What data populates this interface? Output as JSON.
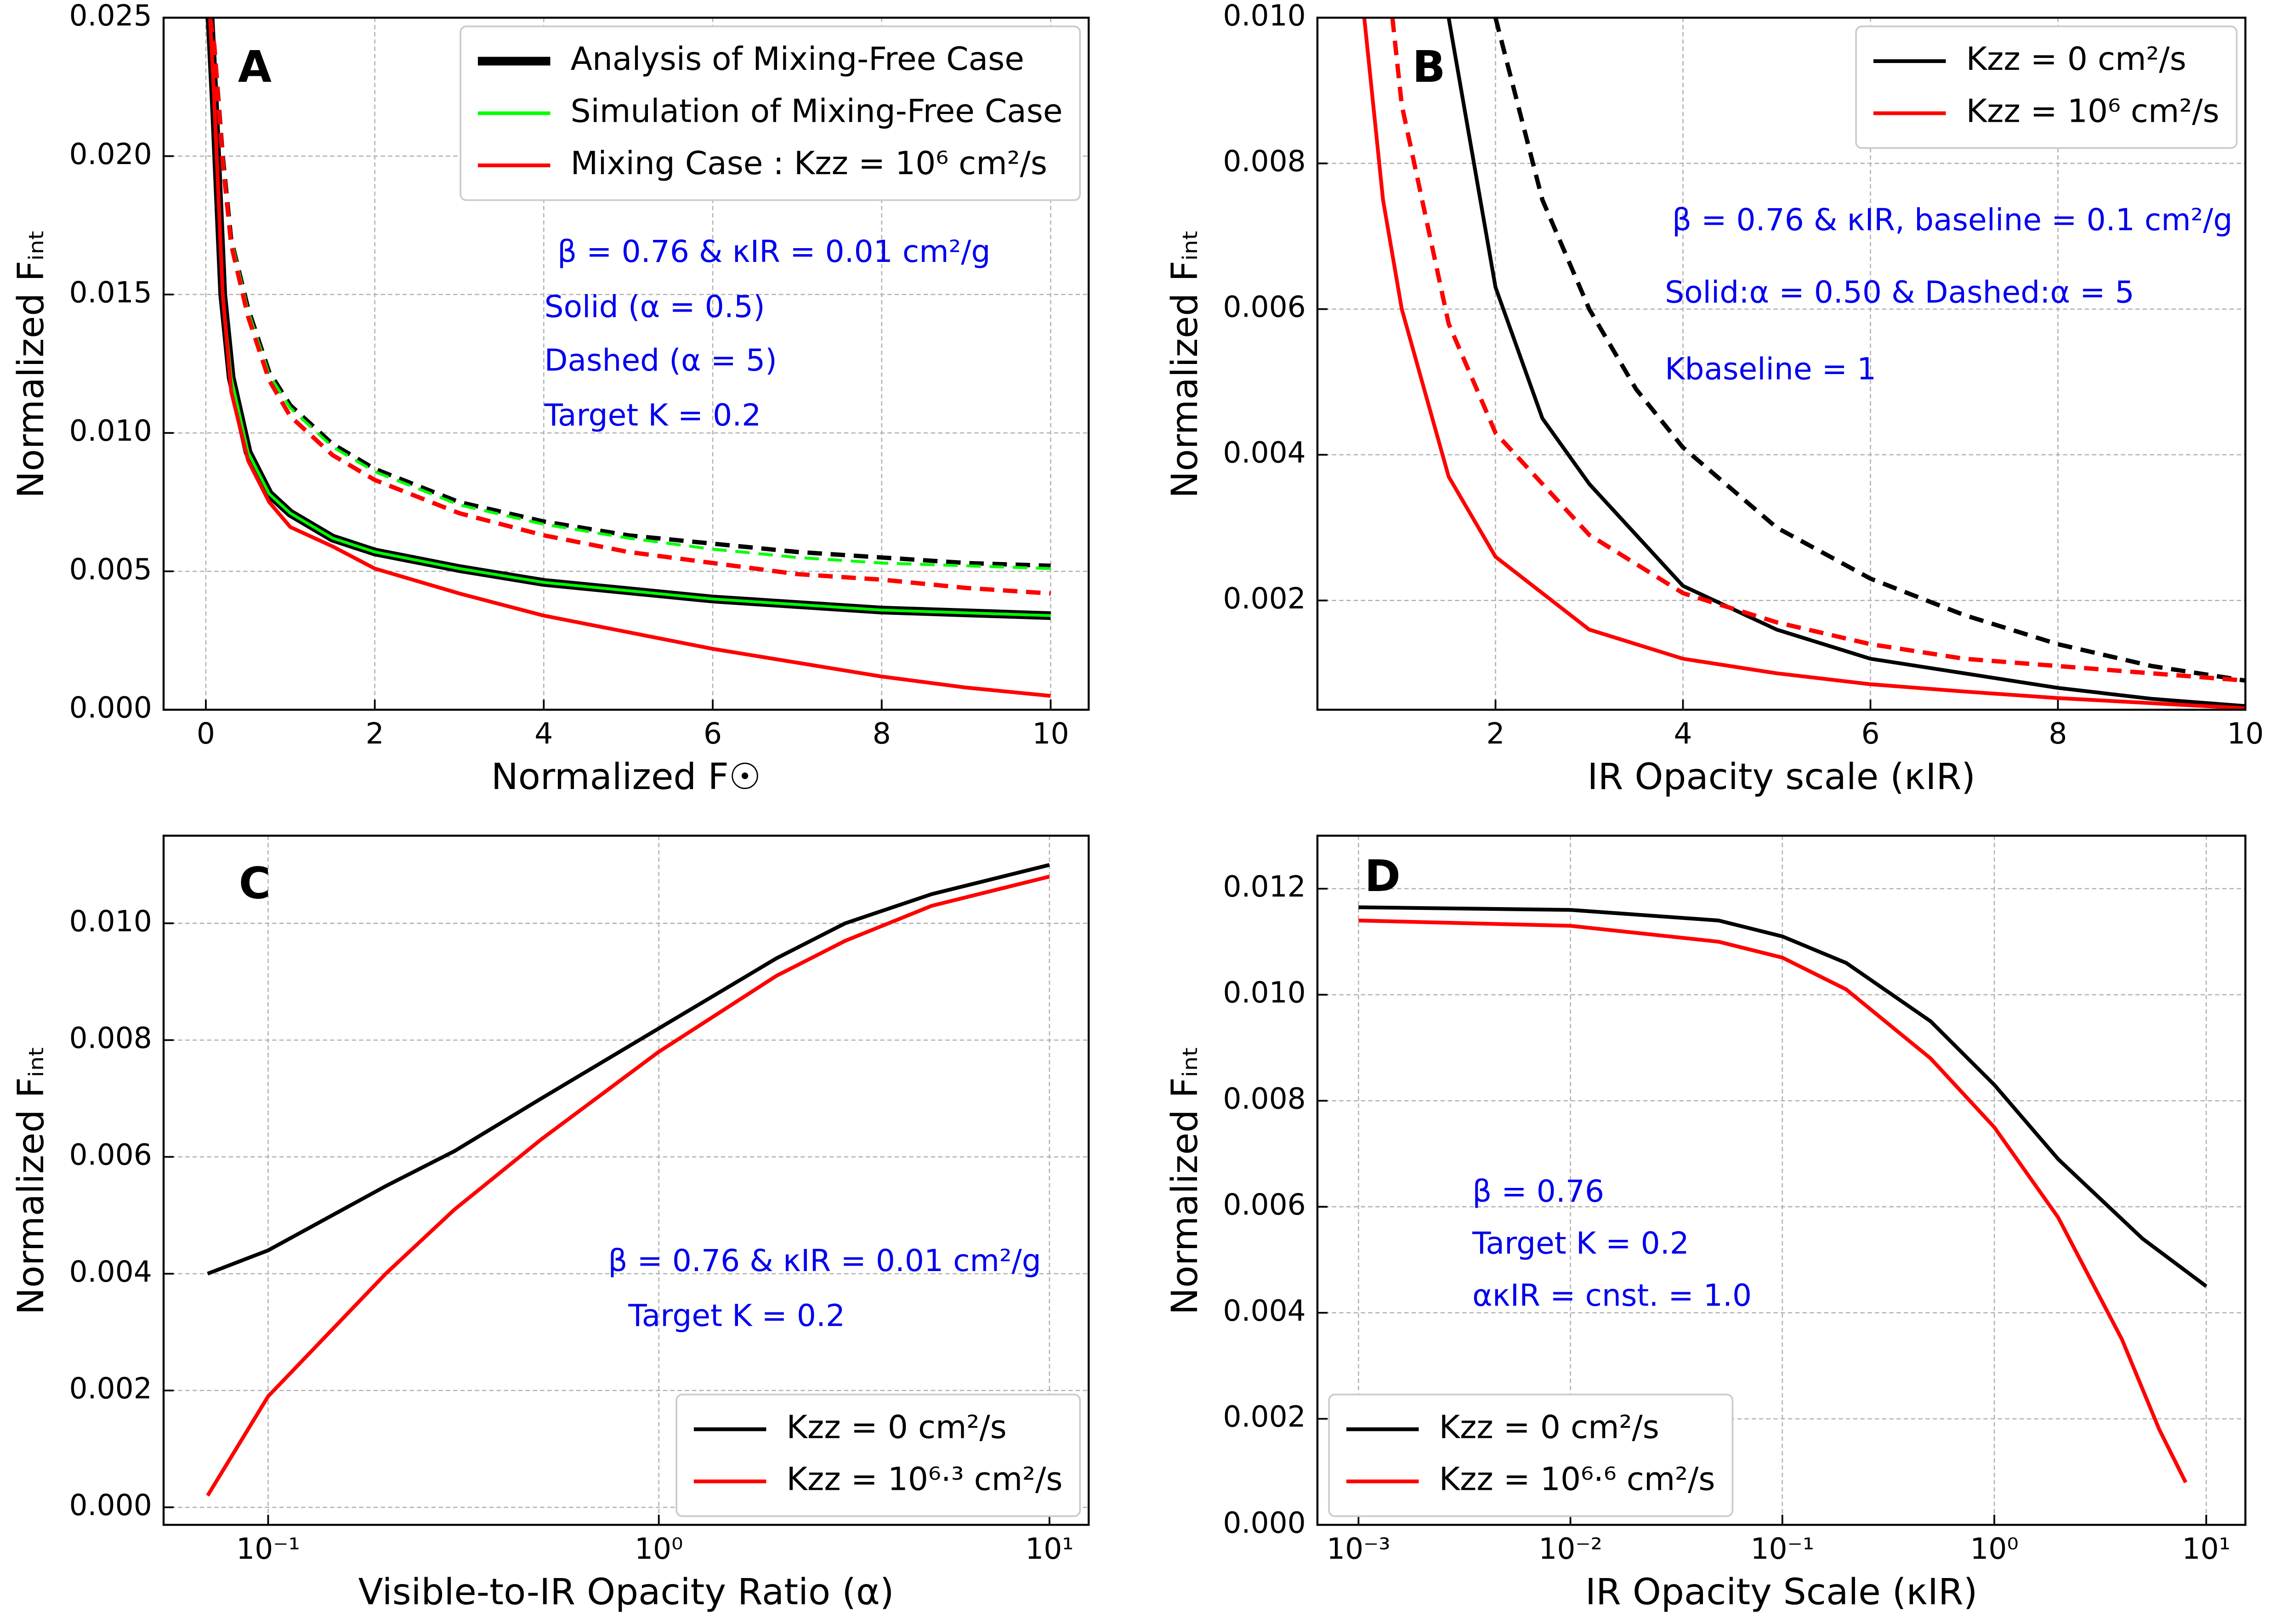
{
  "chart_data": [
    {
      "type": "line",
      "panel_label": "A",
      "xlabel": "Normalized F☉",
      "ylabel": "Normalized Fᵢₙₜ",
      "xscale": "linear",
      "xlim": [
        -0.5,
        10.45
      ],
      "ylim": [
        0,
        0.025
      ],
      "xticks": [
        0,
        2,
        4,
        6,
        8,
        10
      ],
      "yticks": [
        {
          "value": 0,
          "label": "0.000"
        },
        0.005,
        {
          "value": 0.01,
          "label": "0.010"
        },
        0.015,
        {
          "value": 0.02,
          "label": "0.020"
        },
        0.025
      ],
      "grid": true,
      "legend_loc": "upper right",
      "annotations": [
        "β = 0.76 & κIR = 0.01 cm²/g",
        "Solid (α = 0.5)",
        "Dashed (α = 5)",
        "Target K = 0.2"
      ],
      "series": [
        {
          "name": "Analysis of Mixing-Free Case",
          "color": "#000000",
          "x": [
            0.05,
            0.1,
            0.2,
            0.3,
            0.5,
            0.75,
            1,
            1.5,
            2,
            3,
            4,
            5,
            6,
            7,
            8,
            9,
            10
          ],
          "values": [
            0.025,
            0.022,
            0.015,
            0.012,
            0.0093,
            0.0078,
            0.0071,
            0.0062,
            0.0057,
            0.0051,
            0.0046,
            0.0043,
            0.004,
            0.0038,
            0.0036,
            0.0035,
            0.0034
          ],
          "dashed_x": [
            0.05,
            0.1,
            0.2,
            0.3,
            0.5,
            0.75,
            1,
            1.5,
            2,
            3,
            4,
            5,
            6,
            7,
            8,
            9,
            10
          ],
          "dashed_values": [
            0.025,
            0.024,
            0.02,
            0.017,
            0.0145,
            0.0122,
            0.011,
            0.0096,
            0.0087,
            0.0075,
            0.0068,
            0.0063,
            0.006,
            0.0057,
            0.0055,
            0.0053,
            0.0052
          ]
        },
        {
          "name": "Simulation of Mixing-Free Case",
          "color": "#00ff00",
          "x": [
            0.05,
            0.1,
            0.2,
            0.3,
            0.5,
            0.75,
            1,
            1.5,
            2,
            3,
            4,
            5,
            6,
            7,
            8,
            9,
            10
          ],
          "values": [
            0.025,
            0.022,
            0.015,
            0.012,
            0.0093,
            0.0078,
            0.0071,
            0.0062,
            0.0057,
            0.0051,
            0.0046,
            0.0043,
            0.004,
            0.0038,
            0.0036,
            0.0035,
            0.0034
          ],
          "dashed_x": [
            0.05,
            0.1,
            0.2,
            0.3,
            0.5,
            0.75,
            1,
            1.5,
            2,
            3,
            4,
            5,
            6,
            7,
            8,
            9,
            10
          ],
          "dashed_values": [
            0.025,
            0.024,
            0.02,
            0.017,
            0.0144,
            0.0121,
            0.0109,
            0.0095,
            0.0086,
            0.0074,
            0.0067,
            0.0062,
            0.0058,
            0.0055,
            0.0053,
            0.0052,
            0.0051
          ]
        },
        {
          "name": "Mixing Case : Kzz = 10⁶ cm²/s",
          "color": "#ff0000",
          "x": [
            0.05,
            0.1,
            0.2,
            0.3,
            0.5,
            0.75,
            1,
            1.5,
            2,
            3,
            4,
            5,
            6,
            7,
            8,
            9,
            10
          ],
          "values": [
            0.025,
            0.022,
            0.015,
            0.0115,
            0.009,
            0.0075,
            0.0066,
            0.0059,
            0.0051,
            0.0042,
            0.0034,
            0.0028,
            0.0022,
            0.0017,
            0.0012,
            0.0008,
            0.0005
          ],
          "dashed_x": [
            0.05,
            0.1,
            0.2,
            0.3,
            0.5,
            0.75,
            1,
            1.5,
            2,
            3,
            4,
            5,
            6,
            7,
            8,
            9,
            10
          ],
          "dashed_values": [
            0.025,
            0.024,
            0.0198,
            0.0168,
            0.0142,
            0.0119,
            0.0106,
            0.0092,
            0.0083,
            0.0071,
            0.0063,
            0.0057,
            0.0053,
            0.0049,
            0.0047,
            0.0044,
            0.0042
          ]
        }
      ]
    },
    {
      "type": "line",
      "panel_label": "B",
      "xlabel": "IR Opacity scale (κIR)",
      "ylabel": "Normalized Fᵢₙₜ",
      "xscale": "linear",
      "xlim": [
        0.1,
        10
      ],
      "ylim": [
        0.0005,
        0.01
      ],
      "xticks": [
        2,
        4,
        6,
        8,
        10
      ],
      "yticks": [
        0.002,
        0.004,
        0.006,
        0.008,
        {
          "value": 0.01,
          "label": "0.010"
        }
      ],
      "grid": true,
      "legend_loc": "upper right",
      "annotations": [
        "β = 0.76 & κIR, baseline = 0.1 cm²/g",
        "Solid:α = 0.50 & Dashed:α = 5",
        "Kbaseline = 1"
      ],
      "series": [
        {
          "name": "Kzz = 0   cm²/s",
          "color": "#000000",
          "x": [
            1.5,
            2,
            2.5,
            3,
            4,
            5,
            6,
            7,
            8,
            9,
            10
          ],
          "values": [
            0.01,
            0.0063,
            0.0045,
            0.0036,
            0.0022,
            0.0016,
            0.0012,
            0.001,
            0.0008,
            0.00065,
            0.00055
          ],
          "dashed_x": [
            2,
            2.5,
            3,
            3.5,
            4,
            5,
            6,
            7,
            8,
            9,
            10
          ],
          "dashed_values": [
            0.01,
            0.0075,
            0.006,
            0.0049,
            0.0041,
            0.003,
            0.0023,
            0.0018,
            0.0014,
            0.0011,
            0.0009
          ]
        },
        {
          "name": "Kzz = 10⁶ cm²/s",
          "color": "#ff0000",
          "x": [
            0.6,
            0.8,
            1,
            1.5,
            2,
            3,
            4,
            5,
            6,
            7,
            8,
            10
          ],
          "values": [
            0.01,
            0.0075,
            0.006,
            0.0037,
            0.0026,
            0.0016,
            0.0012,
            0.001,
            0.00085,
            0.00075,
            0.00066,
            0.00052
          ],
          "dashed_x": [
            0.9,
            1,
            1.5,
            2,
            3,
            4,
            5,
            6,
            7,
            8,
            10
          ],
          "dashed_values": [
            0.01,
            0.0088,
            0.0058,
            0.0043,
            0.0029,
            0.0021,
            0.0017,
            0.0014,
            0.0012,
            0.0011,
            0.0009
          ]
        }
      ]
    },
    {
      "type": "line",
      "panel_label": "C",
      "xlabel": "Visible-to-IR Opacity Ratio (α)",
      "ylabel": "Normalized Fᵢₙₜ",
      "xscale": "log",
      "xlim": [
        0.054,
        12.6
      ],
      "ylim": [
        -0.0003,
        0.0115
      ],
      "xticks": [
        {
          "value": 0.1,
          "label": "10⁻¹"
        },
        {
          "value": 1,
          "label": "10⁰"
        },
        {
          "value": 10,
          "label": "10¹"
        }
      ],
      "yticks": [
        {
          "value": 0,
          "label": "0.000"
        },
        0.002,
        0.004,
        0.006,
        0.008,
        {
          "value": 0.01,
          "label": "0.010"
        }
      ],
      "grid": true,
      "legend_loc": "lower right",
      "annotations": [
        "β = 0.76 & κIR = 0.01 cm²/g",
        "Target K = 0.2"
      ],
      "series": [
        {
          "name": "Kzz = 0 cm²/s",
          "color": "#000000",
          "x": [
            0.07,
            0.1,
            0.2,
            0.3,
            0.5,
            1,
            2,
            3,
            5,
            10
          ],
          "values": [
            0.004,
            0.0044,
            0.0055,
            0.0061,
            0.007,
            0.0082,
            0.0094,
            0.01,
            0.0105,
            0.011
          ]
        },
        {
          "name": "Kzz = 10⁶·³ cm²/s",
          "color": "#ff0000",
          "x": [
            0.07,
            0.1,
            0.2,
            0.3,
            0.5,
            1,
            2,
            3,
            5,
            10
          ],
          "values": [
            0.0002,
            0.0019,
            0.004,
            0.0051,
            0.0063,
            0.0078,
            0.0091,
            0.0097,
            0.0103,
            0.0108
          ]
        }
      ]
    },
    {
      "type": "line",
      "panel_label": "D",
      "xlabel": "IR Opacity  Scale (κIR)",
      "ylabel": "Normalized Fᵢₙₜ",
      "xscale": "log",
      "xlim": [
        0.00064,
        15.3
      ],
      "ylim": [
        0,
        0.013
      ],
      "xticks": [
        {
          "value": 0.001,
          "label": "10⁻³"
        },
        {
          "value": 0.01,
          "label": "10⁻²"
        },
        {
          "value": 0.1,
          "label": "10⁻¹"
        },
        {
          "value": 1,
          "label": "10⁰"
        },
        {
          "value": 10,
          "label": "10¹"
        }
      ],
      "yticks": [
        {
          "value": 0,
          "label": "0.000"
        },
        0.002,
        0.004,
        0.006,
        0.008,
        {
          "value": 0.01,
          "label": "0.010"
        },
        0.012
      ],
      "grid": true,
      "legend_loc": "lower left",
      "annotations": [
        "β = 0.76",
        "Target K = 0.2",
        "ακIR = cnst. = 1.0"
      ],
      "series": [
        {
          "name": "Kzz =  0  cm²/s",
          "color": "#000000",
          "x": [
            0.001,
            0.01,
            0.05,
            0.1,
            0.2,
            0.5,
            1,
            2,
            5,
            10
          ],
          "values": [
            0.01165,
            0.0116,
            0.0114,
            0.0111,
            0.0106,
            0.0095,
            0.0083,
            0.0069,
            0.0054,
            0.0045
          ]
        },
        {
          "name": "Kzz = 10⁶·⁶ cm²/s",
          "color": "#ff0000",
          "x": [
            0.001,
            0.01,
            0.05,
            0.1,
            0.2,
            0.5,
            1,
            2,
            4,
            6,
            8
          ],
          "values": [
            0.0114,
            0.0113,
            0.011,
            0.0107,
            0.0101,
            0.0088,
            0.0075,
            0.0058,
            0.0035,
            0.0018,
            0.0008
          ]
        }
      ]
    }
  ]
}
